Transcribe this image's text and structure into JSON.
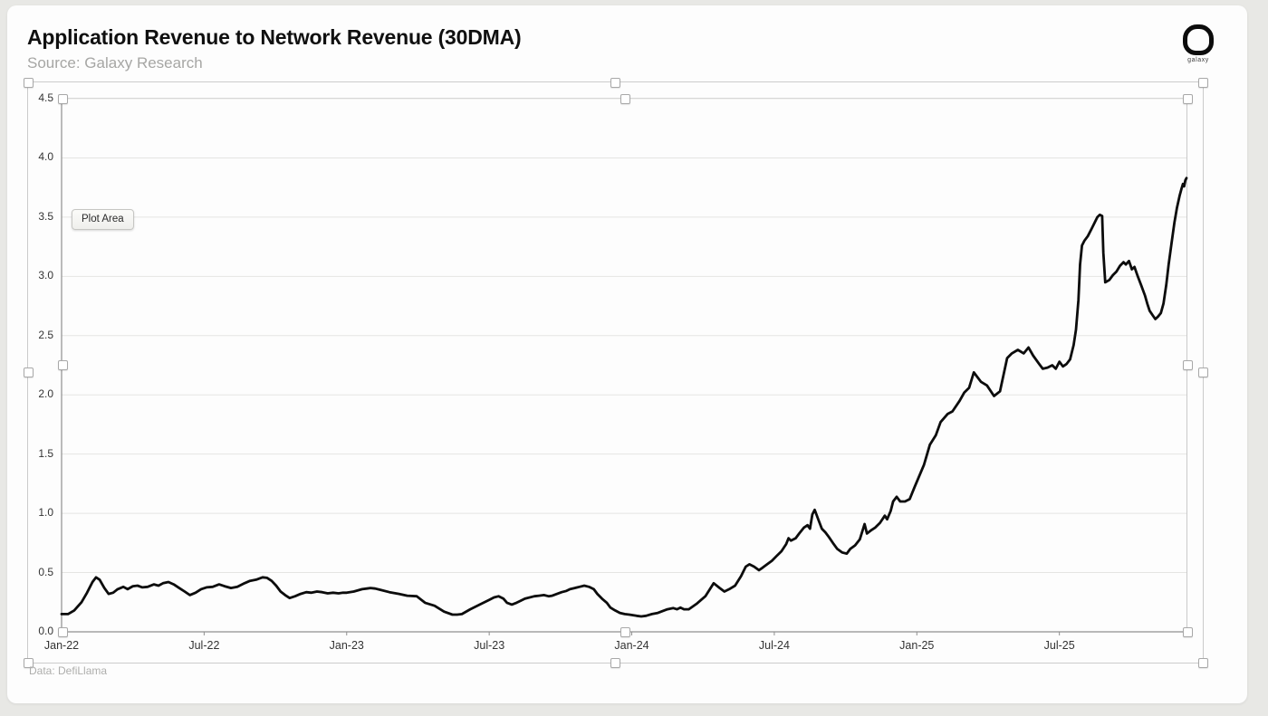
{
  "page": {
    "title": "Application Revenue to Network Revenue (30DMA)",
    "source": "Source: Galaxy Research",
    "footnote": "Data: DefiLlama",
    "logo_text": "galaxy",
    "tooltip": "Plot Area"
  },
  "colors": {
    "line": "#0c0c0c",
    "grid": "#e5e5e3",
    "axis": "#8f8f8f",
    "selection_border": "#cbcbcb",
    "handle_border": "#a8a8a8",
    "card_background": "#fdfdfd",
    "page_background": "#e8e8e5"
  },
  "chart_data": {
    "type": "line",
    "title": "Application Revenue to Network Revenue (30DMA)",
    "xlabel": "",
    "ylabel": "",
    "ylim": [
      0,
      4.5
    ],
    "y_tick_step": 0.5,
    "y_tick_labels": [
      "0.0",
      "0.5",
      "1.0",
      "1.5",
      "2.0",
      "2.5",
      "3.0",
      "3.5",
      "4.0",
      "4.5"
    ],
    "x_unit": "months since Jan-2022",
    "x_tick_positions": [
      0,
      6,
      12,
      18,
      24,
      30,
      36,
      42
    ],
    "x_tick_labels": [
      "Jan-22",
      "Jul-22",
      "Jan-23",
      "Jul-23",
      "Jan-24",
      "Jul-24",
      "Jan-25",
      "Jul-25"
    ],
    "x_max": 47.35,
    "grid": true,
    "legend": false,
    "series": [
      {
        "points": [
          [
            0,
            0.15
          ],
          [
            0.27,
            0.15
          ],
          [
            0.53,
            0.18
          ],
          [
            0.84,
            0.25
          ],
          [
            1.07,
            0.33
          ],
          [
            1.3,
            0.42
          ],
          [
            1.45,
            0.46
          ],
          [
            1.6,
            0.44
          ],
          [
            1.8,
            0.37
          ],
          [
            1.98,
            0.32
          ],
          [
            2.17,
            0.33
          ],
          [
            2.36,
            0.36
          ],
          [
            2.6,
            0.38
          ],
          [
            2.78,
            0.36
          ],
          [
            3.0,
            0.385
          ],
          [
            3.2,
            0.39
          ],
          [
            3.4,
            0.375
          ],
          [
            3.62,
            0.38
          ],
          [
            3.89,
            0.4
          ],
          [
            4.08,
            0.39
          ],
          [
            4.27,
            0.41
          ],
          [
            4.5,
            0.42
          ],
          [
            4.72,
            0.4
          ],
          [
            4.95,
            0.37
          ],
          [
            5.18,
            0.34
          ],
          [
            5.4,
            0.31
          ],
          [
            5.64,
            0.33
          ],
          [
            5.87,
            0.36
          ],
          [
            6.1,
            0.375
          ],
          [
            6.36,
            0.38
          ],
          [
            6.63,
            0.4
          ],
          [
            6.86,
            0.385
          ],
          [
            7.13,
            0.37
          ],
          [
            7.4,
            0.38
          ],
          [
            7.7,
            0.41
          ],
          [
            7.93,
            0.43
          ],
          [
            8.19,
            0.44
          ],
          [
            8.46,
            0.46
          ],
          [
            8.65,
            0.455
          ],
          [
            8.84,
            0.43
          ],
          [
            9.03,
            0.39
          ],
          [
            9.22,
            0.34
          ],
          [
            9.41,
            0.31
          ],
          [
            9.6,
            0.285
          ],
          [
            9.83,
            0.3
          ],
          [
            10.06,
            0.32
          ],
          [
            10.3,
            0.335
          ],
          [
            10.52,
            0.33
          ],
          [
            10.75,
            0.34
          ],
          [
            10.97,
            0.335
          ],
          [
            11.2,
            0.325
          ],
          [
            11.43,
            0.33
          ],
          [
            11.66,
            0.325
          ],
          [
            11.85,
            0.33
          ],
          [
            12.0,
            0.33
          ],
          [
            12.3,
            0.34
          ],
          [
            12.65,
            0.36
          ],
          [
            12.85,
            0.365
          ],
          [
            13.0,
            0.37
          ],
          [
            13.2,
            0.365
          ],
          [
            13.4,
            0.355
          ],
          [
            13.8,
            0.335
          ],
          [
            14.2,
            0.32
          ],
          [
            14.55,
            0.305
          ],
          [
            14.95,
            0.3
          ],
          [
            15.3,
            0.245
          ],
          [
            15.7,
            0.22
          ],
          [
            16.1,
            0.17
          ],
          [
            16.45,
            0.145
          ],
          [
            16.65,
            0.145
          ],
          [
            16.85,
            0.15
          ],
          [
            17.2,
            0.19
          ],
          [
            17.6,
            0.23
          ],
          [
            18.0,
            0.27
          ],
          [
            18.2,
            0.29
          ],
          [
            18.4,
            0.3
          ],
          [
            18.6,
            0.28
          ],
          [
            18.75,
            0.245
          ],
          [
            18.95,
            0.23
          ],
          [
            19.15,
            0.245
          ],
          [
            19.3,
            0.26
          ],
          [
            19.5,
            0.28
          ],
          [
            19.9,
            0.3
          ],
          [
            20.1,
            0.305
          ],
          [
            20.3,
            0.31
          ],
          [
            20.5,
            0.3
          ],
          [
            20.65,
            0.305
          ],
          [
            21.05,
            0.335
          ],
          [
            21.25,
            0.345
          ],
          [
            21.4,
            0.36
          ],
          [
            21.6,
            0.37
          ],
          [
            21.8,
            0.38
          ],
          [
            22.0,
            0.39
          ],
          [
            22.2,
            0.38
          ],
          [
            22.4,
            0.36
          ],
          [
            22.55,
            0.32
          ],
          [
            22.75,
            0.28
          ],
          [
            22.95,
            0.245
          ],
          [
            23.1,
            0.205
          ],
          [
            23.3,
            0.18
          ],
          [
            23.5,
            0.16
          ],
          [
            23.7,
            0.15
          ],
          [
            23.9,
            0.145
          ],
          [
            24.2,
            0.135
          ],
          [
            24.4,
            0.13
          ],
          [
            24.6,
            0.135
          ],
          [
            24.85,
            0.15
          ],
          [
            25.1,
            0.16
          ],
          [
            25.3,
            0.175
          ],
          [
            25.5,
            0.19
          ],
          [
            25.75,
            0.2
          ],
          [
            25.9,
            0.19
          ],
          [
            26.05,
            0.205
          ],
          [
            26.2,
            0.19
          ],
          [
            26.4,
            0.19
          ],
          [
            26.75,
            0.24
          ],
          [
            27.1,
            0.3
          ],
          [
            27.45,
            0.41
          ],
          [
            27.7,
            0.37
          ],
          [
            27.9,
            0.34
          ],
          [
            28.1,
            0.36
          ],
          [
            28.35,
            0.39
          ],
          [
            28.6,
            0.47
          ],
          [
            28.8,
            0.55
          ],
          [
            28.95,
            0.57
          ],
          [
            29.15,
            0.55
          ],
          [
            29.35,
            0.52
          ],
          [
            29.5,
            0.54
          ],
          [
            29.7,
            0.57
          ],
          [
            29.9,
            0.6
          ],
          [
            30.1,
            0.64
          ],
          [
            30.3,
            0.68
          ],
          [
            30.5,
            0.74
          ],
          [
            30.6,
            0.79
          ],
          [
            30.7,
            0.77
          ],
          [
            30.9,
            0.79
          ],
          [
            31.05,
            0.83
          ],
          [
            31.25,
            0.88
          ],
          [
            31.4,
            0.9
          ],
          [
            31.5,
            0.87
          ],
          [
            31.6,
            0.99
          ],
          [
            31.7,
            1.03
          ],
          [
            31.85,
            0.95
          ],
          [
            32.0,
            0.87
          ],
          [
            32.15,
            0.84
          ],
          [
            32.3,
            0.8
          ],
          [
            32.5,
            0.74
          ],
          [
            32.65,
            0.7
          ],
          [
            32.85,
            0.67
          ],
          [
            33.05,
            0.66
          ],
          [
            33.2,
            0.7
          ],
          [
            33.4,
            0.73
          ],
          [
            33.6,
            0.78
          ],
          [
            33.8,
            0.91
          ],
          [
            33.9,
            0.83
          ],
          [
            34.1,
            0.86
          ],
          [
            34.25,
            0.88
          ],
          [
            34.45,
            0.92
          ],
          [
            34.65,
            0.98
          ],
          [
            34.75,
            0.95
          ],
          [
            34.9,
            1.02
          ],
          [
            35.0,
            1.1
          ],
          [
            35.15,
            1.14
          ],
          [
            35.3,
            1.1
          ],
          [
            35.5,
            1.1
          ],
          [
            35.7,
            1.12
          ],
          [
            35.9,
            1.22
          ],
          [
            36.3,
            1.41
          ],
          [
            36.55,
            1.58
          ],
          [
            36.8,
            1.66
          ],
          [
            37.0,
            1.77
          ],
          [
            37.3,
            1.84
          ],
          [
            37.5,
            1.86
          ],
          [
            37.8,
            1.95
          ],
          [
            38.0,
            2.02
          ],
          [
            38.2,
            2.06
          ],
          [
            38.4,
            2.19
          ],
          [
            38.7,
            2.11
          ],
          [
            38.95,
            2.08
          ],
          [
            39.25,
            1.99
          ],
          [
            39.5,
            2.03
          ],
          [
            39.8,
            2.31
          ],
          [
            40.0,
            2.35
          ],
          [
            40.25,
            2.38
          ],
          [
            40.5,
            2.35
          ],
          [
            40.7,
            2.4
          ],
          [
            40.9,
            2.33
          ],
          [
            41.15,
            2.26
          ],
          [
            41.3,
            2.22
          ],
          [
            41.5,
            2.23
          ],
          [
            41.7,
            2.25
          ],
          [
            41.85,
            2.22
          ],
          [
            42.0,
            2.28
          ],
          [
            42.15,
            2.24
          ],
          [
            42.3,
            2.26
          ],
          [
            42.45,
            2.3
          ],
          [
            42.6,
            2.42
          ],
          [
            42.7,
            2.55
          ],
          [
            42.8,
            2.8
          ],
          [
            42.87,
            3.1
          ],
          [
            42.95,
            3.26
          ],
          [
            43.05,
            3.3
          ],
          [
            43.2,
            3.34
          ],
          [
            43.35,
            3.4
          ],
          [
            43.5,
            3.46
          ],
          [
            43.6,
            3.5
          ],
          [
            43.7,
            3.52
          ],
          [
            43.8,
            3.51
          ],
          [
            43.85,
            3.2
          ],
          [
            43.93,
            2.95
          ],
          [
            44.1,
            2.97
          ],
          [
            44.25,
            3.01
          ],
          [
            44.4,
            3.04
          ],
          [
            44.55,
            3.09
          ],
          [
            44.7,
            3.12
          ],
          [
            44.8,
            3.1
          ],
          [
            44.93,
            3.13
          ],
          [
            45.05,
            3.06
          ],
          [
            45.16,
            3.08
          ],
          [
            45.3,
            3.0
          ],
          [
            45.45,
            2.92
          ],
          [
            45.6,
            2.84
          ],
          [
            45.7,
            2.77
          ],
          [
            45.8,
            2.71
          ],
          [
            45.93,
            2.67
          ],
          [
            46.04,
            2.64
          ],
          [
            46.15,
            2.66
          ],
          [
            46.27,
            2.69
          ],
          [
            46.38,
            2.77
          ],
          [
            46.5,
            2.93
          ],
          [
            46.6,
            3.1
          ],
          [
            46.72,
            3.28
          ],
          [
            46.84,
            3.45
          ],
          [
            46.95,
            3.58
          ],
          [
            47.06,
            3.68
          ],
          [
            47.14,
            3.74
          ],
          [
            47.2,
            3.78
          ],
          [
            47.25,
            3.76
          ],
          [
            47.3,
            3.81
          ],
          [
            47.35,
            3.83
          ]
        ]
      }
    ]
  }
}
